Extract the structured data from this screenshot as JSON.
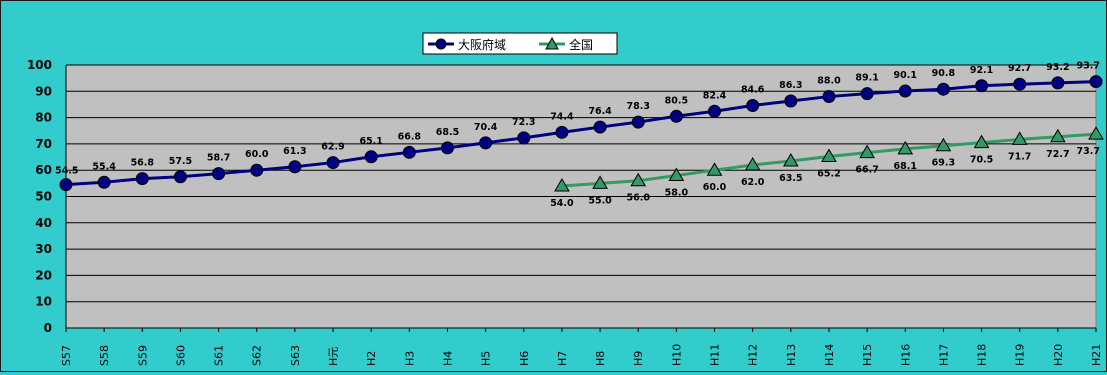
{
  "chart_data": {
    "type": "line",
    "categories": [
      "S57",
      "S58",
      "S59",
      "S60",
      "S61",
      "S62",
      "S63",
      "H元",
      "H2",
      "H3",
      "H4",
      "H5",
      "H6",
      "H7",
      "H8",
      "H9",
      "H10",
      "H11",
      "H12",
      "H13",
      "H14",
      "H15",
      "H16",
      "H17",
      "H18",
      "H19",
      "H20",
      "H21"
    ],
    "ylim": [
      0,
      100
    ],
    "yticks": [
      "0",
      "10",
      "20",
      "30",
      "40",
      "50",
      "60",
      "70",
      "80",
      "90",
      "100"
    ],
    "grid": true,
    "legend_position": "top-center",
    "series": [
      {
        "name": "大阪府域",
        "color": "#000080",
        "marker": "circle",
        "values": [
          54.5,
          55.4,
          56.8,
          57.5,
          58.7,
          60.0,
          61.3,
          62.9,
          65.1,
          66.8,
          68.5,
          70.4,
          72.3,
          74.4,
          76.4,
          78.3,
          80.5,
          82.4,
          84.6,
          86.3,
          88.0,
          89.1,
          90.1,
          90.8,
          92.1,
          92.7,
          93.2,
          93.7
        ],
        "labels": [
          "54.5",
          "55.4",
          "56.8",
          "57.5",
          "58.7",
          "60.0",
          "61.3",
          "62.9",
          "65.1",
          "66.8",
          "68.5",
          "70.4",
          "72.3",
          "74.4",
          "76.4",
          "78.3",
          "80.5",
          "82.4",
          "84.6",
          "86.3",
          "88.0",
          "89.1",
          "90.1",
          "90.8",
          "92.1",
          "92.7",
          "93.2",
          "93.7"
        ]
      },
      {
        "name": "全国",
        "color": "#339966",
        "marker": "triangle",
        "values": [
          null,
          null,
          null,
          null,
          null,
          null,
          null,
          null,
          null,
          null,
          null,
          null,
          null,
          54.0,
          55.0,
          56.0,
          58.0,
          60.0,
          62.0,
          63.5,
          65.2,
          66.7,
          68.1,
          69.3,
          70.5,
          71.7,
          72.7,
          73.7
        ],
        "labels": [
          null,
          null,
          null,
          null,
          null,
          null,
          null,
          null,
          null,
          null,
          null,
          null,
          null,
          "54.0",
          "55.0",
          "56.0",
          "58.0",
          "60.0",
          "62.0",
          "63.5",
          "65.2",
          "66.7",
          "68.1",
          "69.3",
          "70.5",
          "71.7",
          "72.7",
          "73.7"
        ]
      }
    ]
  }
}
